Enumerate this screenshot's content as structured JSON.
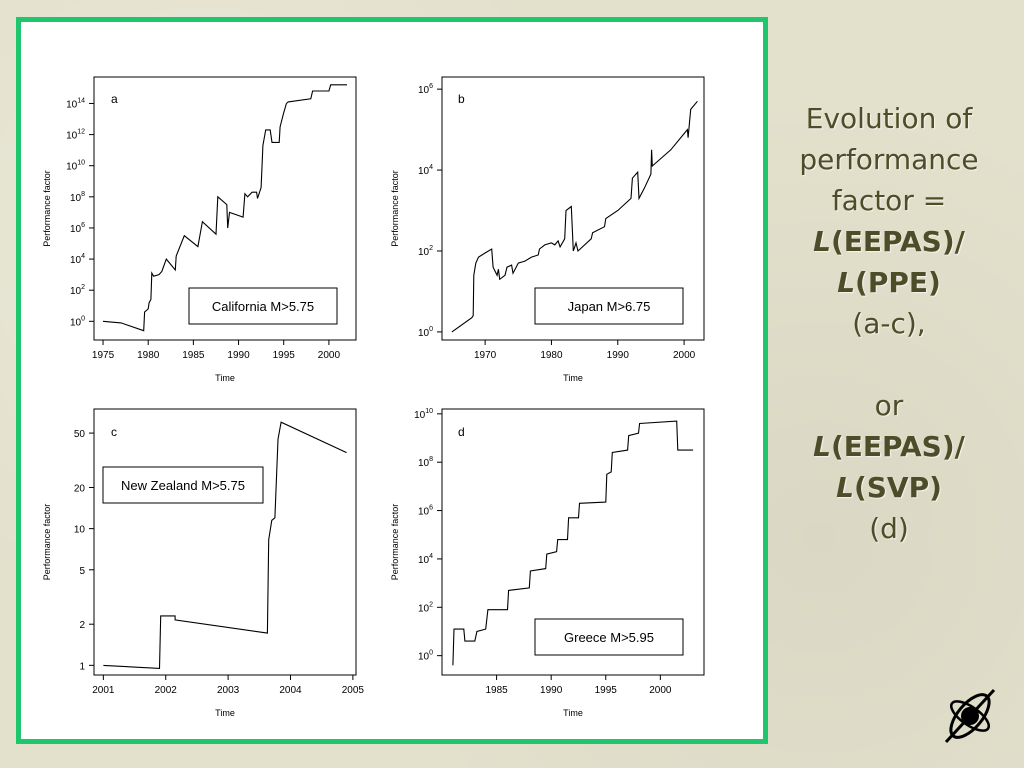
{
  "side_text": {
    "line1": "Evolution of",
    "line2": "performance",
    "line3": "factor =",
    "line4_sym": "L",
    "line4_rest": "(EEPAS)/",
    "line5_sym": "L",
    "line5_rest": "(PPE)",
    "line6": "(a-c),",
    "line7": "or",
    "line8_sym": "L",
    "line8_rest": "(EEPAS)/",
    "line9_sym": "L",
    "line9_rest": "(SVP)",
    "line10": "(d)"
  },
  "logo": {
    "icon": "atom-orbit-icon"
  },
  "colors": {
    "frame": "#1ec66e",
    "background": "#e3e1cc",
    "title_text": "#4d4d29"
  },
  "chart_data": [
    {
      "panel": "a",
      "type": "line",
      "xlabel": "Time",
      "ylabel": "Performance factor",
      "legend": "California M>5.75",
      "legend_position": "bottom-right",
      "y_scale": "log10",
      "xlim": [
        1974,
        2003
      ],
      "ylim_log10": [
        -1.2,
        15.7
      ],
      "x_ticks": [
        1975,
        1980,
        1985,
        1990,
        1995,
        2000
      ],
      "y_ticks": [
        {
          "exp": 0,
          "label": "10",
          "sup": "0"
        },
        {
          "exp": 2,
          "label": "10",
          "sup": "2"
        },
        {
          "exp": 4,
          "label": "10",
          "sup": "4"
        },
        {
          "exp": 6,
          "label": "10",
          "sup": "6"
        },
        {
          "exp": 8,
          "label": "10",
          "sup": "8"
        },
        {
          "exp": 10,
          "label": "10",
          "sup": "10"
        },
        {
          "exp": 12,
          "label": "10",
          "sup": "12"
        },
        {
          "exp": 14,
          "label": "10",
          "sup": "14"
        }
      ],
      "points_log10": [
        [
          1975,
          0
        ],
        [
          1977,
          -0.1
        ],
        [
          1979.5,
          -0.6
        ],
        [
          1979.6,
          0.6
        ],
        [
          1980,
          0.8
        ],
        [
          1980.1,
          1.2
        ],
        [
          1980.3,
          1.4
        ],
        [
          1980.4,
          3.1
        ],
        [
          1980.6,
          2.9
        ],
        [
          1981.2,
          3.0
        ],
        [
          1981.5,
          3.2
        ],
        [
          1982,
          4.0
        ],
        [
          1983,
          3.3
        ],
        [
          1983.1,
          4.2
        ],
        [
          1984,
          5.5
        ],
        [
          1985.5,
          4.8
        ],
        [
          1986,
          6.4
        ],
        [
          1987.5,
          5.6
        ],
        [
          1987.7,
          8.0
        ],
        [
          1988.7,
          7.5
        ],
        [
          1988.8,
          6.0
        ],
        [
          1989,
          7.0
        ],
        [
          1990.5,
          6.7
        ],
        [
          1990.7,
          8.2
        ],
        [
          1991,
          8.0
        ],
        [
          1991.5,
          8.3
        ],
        [
          1992,
          8.3
        ],
        [
          1992.1,
          7.9
        ],
        [
          1992.5,
          8.6
        ],
        [
          1992.7,
          11.3
        ],
        [
          1993,
          12.3
        ],
        [
          1993.5,
          12.3
        ],
        [
          1993.7,
          11.5
        ],
        [
          1994.5,
          11.5
        ],
        [
          1994.6,
          12.5
        ],
        [
          1995,
          13.4
        ],
        [
          1995.3,
          14.0
        ],
        [
          1995.5,
          14.1
        ],
        [
          1998,
          14.3
        ],
        [
          1998.2,
          14.8
        ],
        [
          2000,
          14.8
        ],
        [
          2000.2,
          15.2
        ],
        [
          2002,
          15.2
        ]
      ]
    },
    {
      "panel": "b",
      "type": "line",
      "xlabel": "Time",
      "ylabel": "Performance factor",
      "legend": "Japan M>6.75",
      "legend_position": "bottom-right",
      "y_scale": "log10",
      "xlim": [
        1963.5,
        2003
      ],
      "ylim_log10": [
        -0.2,
        6.3
      ],
      "x_ticks": [
        1970,
        1980,
        1990,
        2000
      ],
      "y_ticks": [
        {
          "exp": 0,
          "label": "10",
          "sup": "0"
        },
        {
          "exp": 2,
          "label": "10",
          "sup": "2"
        },
        {
          "exp": 4,
          "label": "10",
          "sup": "4"
        },
        {
          "exp": 6,
          "label": "10",
          "sup": "6"
        }
      ],
      "points_log10": [
        [
          1965,
          0
        ],
        [
          1968,
          0.35
        ],
        [
          1968.2,
          0.4
        ],
        [
          1968.3,
          1.4
        ],
        [
          1968.6,
          1.7
        ],
        [
          1969,
          1.85
        ],
        [
          1970,
          1.95
        ],
        [
          1971,
          2.05
        ],
        [
          1971.2,
          1.6
        ],
        [
          1971.5,
          1.5
        ],
        [
          1971.8,
          1.4
        ],
        [
          1972,
          1.55
        ],
        [
          1972.2,
          1.3
        ],
        [
          1973,
          1.4
        ],
        [
          1973.3,
          1.6
        ],
        [
          1974,
          1.65
        ],
        [
          1974.2,
          1.45
        ],
        [
          1975,
          1.7
        ],
        [
          1976,
          1.75
        ],
        [
          1977,
          1.85
        ],
        [
          1978,
          1.9
        ],
        [
          1978.2,
          2.05
        ],
        [
          1979,
          2.15
        ],
        [
          1980,
          2.2
        ],
        [
          1980.5,
          2.15
        ],
        [
          1981,
          2.25
        ],
        [
          1981.3,
          2.1
        ],
        [
          1982,
          2.3
        ],
        [
          1982.2,
          3.0
        ],
        [
          1983,
          3.1
        ],
        [
          1983.3,
          2.0
        ],
        [
          1983.5,
          2.1
        ],
        [
          1983.7,
          2.2
        ],
        [
          1984,
          2.0
        ],
        [
          1986,
          2.3
        ],
        [
          1986.2,
          2.45
        ],
        [
          1988,
          2.6
        ],
        [
          1988.2,
          2.8
        ],
        [
          1990,
          3.0
        ],
        [
          1992,
          3.3
        ],
        [
          1992.2,
          3.8
        ],
        [
          1993,
          3.95
        ],
        [
          1993.2,
          3.3
        ],
        [
          1994,
          3.55
        ],
        [
          1995,
          3.9
        ],
        [
          1995.1,
          4.5
        ],
        [
          1995.2,
          4.1
        ],
        [
          1998,
          4.5
        ],
        [
          2000,
          4.9
        ],
        [
          2000.5,
          5.0
        ],
        [
          2000.6,
          4.8
        ],
        [
          2001,
          5.5
        ],
        [
          2002,
          5.7
        ]
      ]
    },
    {
      "panel": "c",
      "type": "line",
      "xlabel": "Time",
      "ylabel": "Performance factor",
      "legend": "New Zealand M>5.75",
      "legend_position": "top-left",
      "y_scale": "log",
      "xlim": [
        2000.85,
        2005.05
      ],
      "ylim": [
        0.85,
        75
      ],
      "x_ticks": [
        2001,
        2002,
        2003,
        2004,
        2005
      ],
      "y_ticks": [
        1,
        2,
        5,
        10,
        20,
        50
      ],
      "points": [
        [
          2001,
          1.0
        ],
        [
          2001.9,
          0.95
        ],
        [
          2001.92,
          2.3
        ],
        [
          2002.15,
          2.3
        ],
        [
          2002.15,
          2.15
        ],
        [
          2003.63,
          1.72
        ],
        [
          2003.65,
          8.3
        ],
        [
          2003.7,
          11.5
        ],
        [
          2003.75,
          12
        ],
        [
          2003.8,
          45
        ],
        [
          2003.85,
          60
        ],
        [
          2004.9,
          36
        ]
      ]
    },
    {
      "panel": "d",
      "type": "line",
      "xlabel": "Time",
      "ylabel": "Performance factor",
      "legend": "Greece M>5.95",
      "legend_position": "bottom-right",
      "y_scale": "log10",
      "xlim": [
        1980,
        2004
      ],
      "ylim_log10": [
        -0.8,
        10.2
      ],
      "x_ticks": [
        1985,
        1990,
        1995,
        2000
      ],
      "y_ticks": [
        {
          "exp": 0,
          "label": "10",
          "sup": "0"
        },
        {
          "exp": 2,
          "label": "10",
          "sup": "2"
        },
        {
          "exp": 4,
          "label": "10",
          "sup": "4"
        },
        {
          "exp": 6,
          "label": "10",
          "sup": "6"
        },
        {
          "exp": 8,
          "label": "10",
          "sup": "8"
        },
        {
          "exp": 10,
          "label": "10",
          "sup": "10"
        }
      ],
      "points_log10": [
        [
          1981,
          -0.4
        ],
        [
          1981.1,
          1.1
        ],
        [
          1982,
          1.1
        ],
        [
          1982.1,
          0.6
        ],
        [
          1983,
          0.6
        ],
        [
          1983.2,
          1.0
        ],
        [
          1984,
          1.1
        ],
        [
          1984.2,
          1.9
        ],
        [
          1986,
          1.9
        ],
        [
          1986.1,
          2.7
        ],
        [
          1988,
          2.8
        ],
        [
          1988.1,
          3.5
        ],
        [
          1989.5,
          3.6
        ],
        [
          1989.6,
          4.2
        ],
        [
          1990.5,
          4.3
        ],
        [
          1990.6,
          4.8
        ],
        [
          1991.5,
          4.8
        ],
        [
          1991.6,
          5.7
        ],
        [
          1992.5,
          5.7
        ],
        [
          1992.6,
          6.3
        ],
        [
          1995,
          6.35
        ],
        [
          1995.1,
          7.5
        ],
        [
          1995.5,
          7.6
        ],
        [
          1995.6,
          8.4
        ],
        [
          1997,
          8.5
        ],
        [
          1997.1,
          9.1
        ],
        [
          1998,
          9.2
        ],
        [
          1998.1,
          9.6
        ],
        [
          2001.5,
          9.7
        ],
        [
          2001.6,
          8.5
        ],
        [
          2003,
          8.5
        ]
      ]
    }
  ]
}
